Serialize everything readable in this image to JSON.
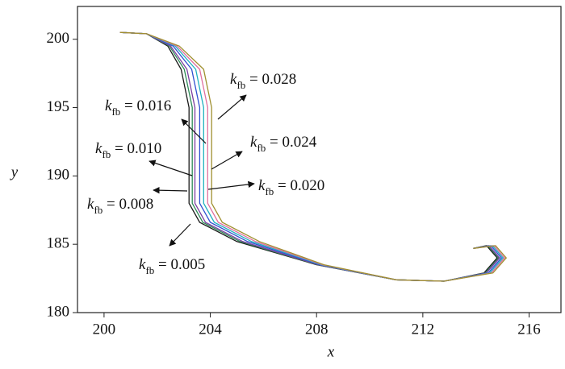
{
  "chart_data": {
    "type": "line",
    "x_label": "x",
    "y_label": "y",
    "xlim": [
      199,
      217.2
    ],
    "ylim": [
      180,
      202.4
    ],
    "xticks": [
      200,
      204,
      208,
      212,
      216
    ],
    "yticks": [
      180,
      185,
      190,
      195,
      200
    ],
    "series": [
      {
        "name": "kfb = 0.005",
        "color": "#1a1a1a",
        "x": [
          200.6,
          201.6,
          202.4,
          202.9,
          203.2,
          203.2,
          203.2,
          203.6,
          205,
          208,
          211,
          212.8,
          214.3,
          214.8,
          214.4,
          213.9
        ],
        "values": [
          200.5,
          200.4,
          199.5,
          197.8,
          195,
          191.5,
          188,
          186.6,
          185.2,
          183.5,
          182.4,
          182.3,
          182.9,
          184,
          184.9,
          184.7
        ]
      },
      {
        "name": "kfb = 0.008",
        "color": "#2e8b57",
        "x": [
          200.6,
          201.6,
          202.46,
          203.02,
          203.32,
          203.32,
          203.32,
          203.72,
          205.12,
          208.04,
          211,
          212.8,
          214.35,
          214.85,
          214.45,
          213.9
        ],
        "values": [
          200.5,
          200.4,
          199.5,
          197.8,
          195,
          191.5,
          188,
          186.6,
          185.2,
          183.5,
          182.4,
          182.3,
          182.9,
          184,
          184.9,
          184.7
        ]
      },
      {
        "name": "kfb = 0.010",
        "color": "#7b3fa0",
        "x": [
          200.6,
          201.6,
          202.51,
          203.12,
          203.42,
          203.42,
          203.42,
          203.82,
          205.22,
          208.07,
          211,
          212.8,
          214.39,
          214.89,
          214.49,
          213.9
        ],
        "values": [
          200.5,
          200.4,
          199.5,
          197.8,
          195,
          191.5,
          188,
          186.6,
          185.2,
          183.5,
          182.4,
          182.3,
          182.9,
          184,
          184.9,
          184.7
        ]
      },
      {
        "name": "kfb = 0.016",
        "color": "#3050d0",
        "x": [
          200.6,
          201.6,
          202.6,
          203.3,
          203.6,
          203.6,
          203.6,
          204,
          205.4,
          208.13,
          211,
          212.8,
          214.46,
          214.96,
          214.56,
          213.9
        ],
        "values": [
          200.5,
          200.4,
          199.5,
          197.8,
          195,
          191.5,
          188,
          186.6,
          185.2,
          183.5,
          182.4,
          182.3,
          182.9,
          184,
          184.9,
          184.7
        ]
      },
      {
        "name": "kfb = 0.020",
        "color": "#20b0c0",
        "x": [
          200.6,
          201.6,
          202.68,
          203.45,
          203.75,
          203.75,
          203.75,
          204.15,
          205.55,
          208.18,
          211,
          212.8,
          214.52,
          215.02,
          214.62,
          213.9
        ],
        "values": [
          200.5,
          200.4,
          199.5,
          197.8,
          195,
          191.5,
          188,
          186.6,
          185.2,
          183.5,
          182.4,
          182.3,
          182.9,
          184,
          184.9,
          184.7
        ]
      },
      {
        "name": "kfb = 0.024",
        "color": "#e070a0",
        "x": [
          200.6,
          201.6,
          202.75,
          203.6,
          203.9,
          203.9,
          203.9,
          204.3,
          205.7,
          208.23,
          211,
          212.8,
          214.58,
          215.08,
          214.68,
          213.9
        ],
        "values": [
          200.5,
          200.4,
          199.5,
          197.8,
          195,
          191.5,
          188,
          186.6,
          185.2,
          183.5,
          182.4,
          182.3,
          182.9,
          184,
          184.9,
          184.7
        ]
      },
      {
        "name": "kfb = 0.028",
        "color": "#a09030",
        "x": [
          200.6,
          201.6,
          202.83,
          203.75,
          204.05,
          204.05,
          204.05,
          204.45,
          205.85,
          208.28,
          211,
          212.8,
          214.64,
          215.14,
          214.74,
          213.9
        ],
        "values": [
          200.5,
          200.4,
          199.5,
          197.8,
          195,
          191.5,
          188,
          186.6,
          185.2,
          183.5,
          182.4,
          182.3,
          182.9,
          184,
          184.9,
          184.7
        ]
      }
    ]
  }
}
